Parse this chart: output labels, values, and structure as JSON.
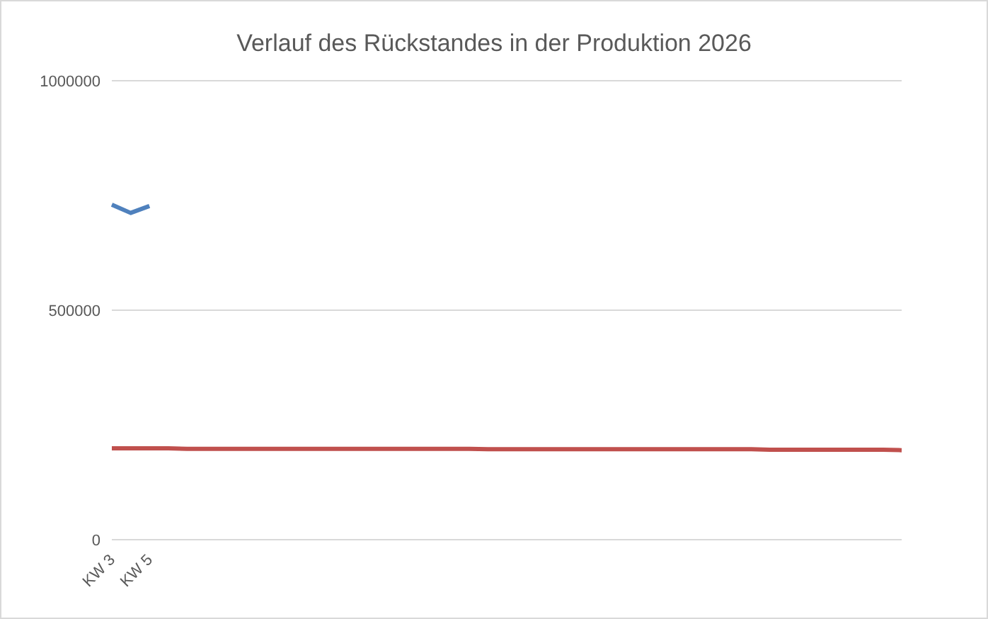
{
  "chart_data": {
    "type": "line",
    "title": "Verlauf des Rückstandes in der Produktion 2026",
    "categories": [
      "KW 3",
      null,
      "KW 5",
      null,
      null,
      null,
      null,
      null,
      null,
      null,
      null,
      null,
      null,
      null,
      null,
      null,
      null,
      null,
      null,
      null,
      null,
      null,
      null,
      null,
      null,
      null,
      null,
      null,
      null,
      null,
      null,
      null,
      null,
      null,
      null,
      null,
      null,
      null,
      null,
      null,
      null,
      null,
      null
    ],
    "series": [
      {
        "color": "#4f81bd",
        "values": [
          730000,
          712000,
          727000,
          null,
          null,
          null,
          null,
          null,
          null,
          null,
          null,
          null,
          null,
          null,
          null,
          null,
          null,
          null,
          null,
          null,
          null,
          null,
          null,
          null,
          null,
          null,
          null,
          null,
          null,
          null,
          null,
          null,
          null,
          null,
          null,
          null,
          null,
          null,
          null,
          null,
          null,
          null,
          null
        ]
      },
      {
        "color": "#c0504d",
        "values": [
          199000,
          199000,
          199000,
          199000,
          198000,
          198000,
          198000,
          198000,
          198000,
          198000,
          198000,
          198000,
          198000,
          198000,
          198000,
          198000,
          198000,
          198000,
          198000,
          198000,
          197000,
          197000,
          197000,
          197000,
          197000,
          197000,
          197000,
          197000,
          197000,
          197000,
          197000,
          197000,
          197000,
          197000,
          197000,
          196000,
          196000,
          196000,
          196000,
          196000,
          196000,
          196000,
          195000
        ]
      }
    ],
    "ylim": [
      0,
      1000000
    ],
    "yticks": [
      0,
      500000,
      1000000
    ],
    "grid": "y",
    "legend": false,
    "marker": "none",
    "line_style": "solid"
  }
}
